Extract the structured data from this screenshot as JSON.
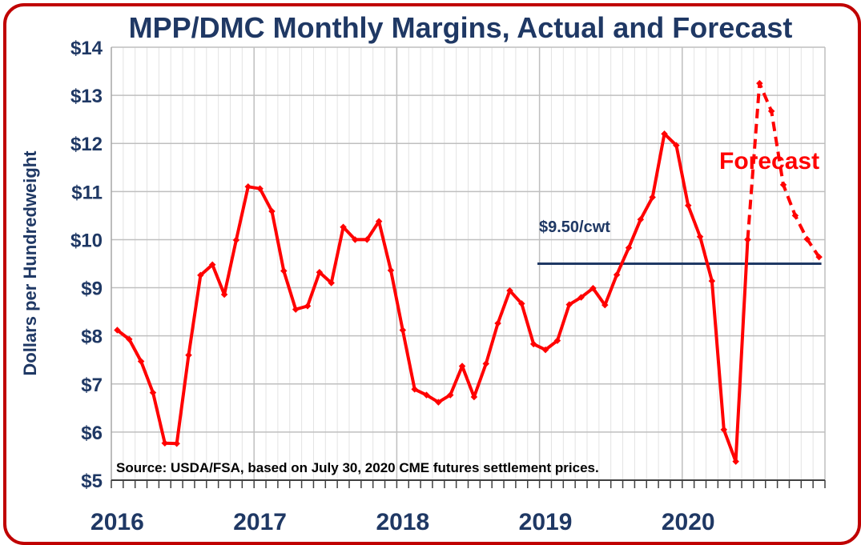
{
  "chart_data": {
    "type": "line",
    "title": "MPP/DMC Monthly Margins, Actual and Forecast",
    "ylabel": "Dollars per Hundredweight",
    "xlabel": "",
    "ylim": [
      5,
      14
    ],
    "y_ticks": [
      "$5",
      "$6",
      "$7",
      "$8",
      "$9",
      "$10",
      "$11",
      "$12",
      "$13",
      "$14"
    ],
    "x_ticks": [
      "2016",
      "2017",
      "2018",
      "2019",
      "2020"
    ],
    "grid": true,
    "colors": {
      "series": "#ff0000",
      "reference": "#1f3864",
      "text": "#1f3864",
      "border": "#c00000"
    },
    "series": [
      {
        "values": [
          8.12,
          7.93,
          7.47,
          6.82,
          5.77,
          5.76,
          7.6,
          9.26,
          9.48,
          8.86,
          9.99,
          11.1,
          11.06,
          10.59,
          9.35,
          8.55,
          8.62,
          9.32,
          9.1,
          10.26,
          10.0,
          10.0,
          10.38,
          9.36,
          8.12,
          6.89,
          6.77,
          6.62,
          6.77,
          7.37,
          6.73,
          7.42,
          8.26,
          8.94,
          8.67,
          7.83,
          7.71,
          7.9,
          8.65,
          8.8,
          8.99,
          8.64,
          9.27,
          9.83,
          10.42,
          10.88,
          12.2,
          11.96,
          10.71,
          10.06,
          9.14,
          6.05,
          5.39,
          10.0
        ]
      },
      {
        "name": "Forecast",
        "start_index": 53,
        "values": [
          10.0,
          13.25,
          12.67,
          11.14,
          10.5,
          10.01,
          9.64
        ]
      }
    ],
    "reference_line": {
      "label": "$9.50/cwt",
      "value": 9.5,
      "start_index": 36,
      "end_index": 59
    },
    "annotations": {
      "source": "Source:  USDA/FSA, based on July 30, 2020 CME futures settlement prices."
    }
  }
}
